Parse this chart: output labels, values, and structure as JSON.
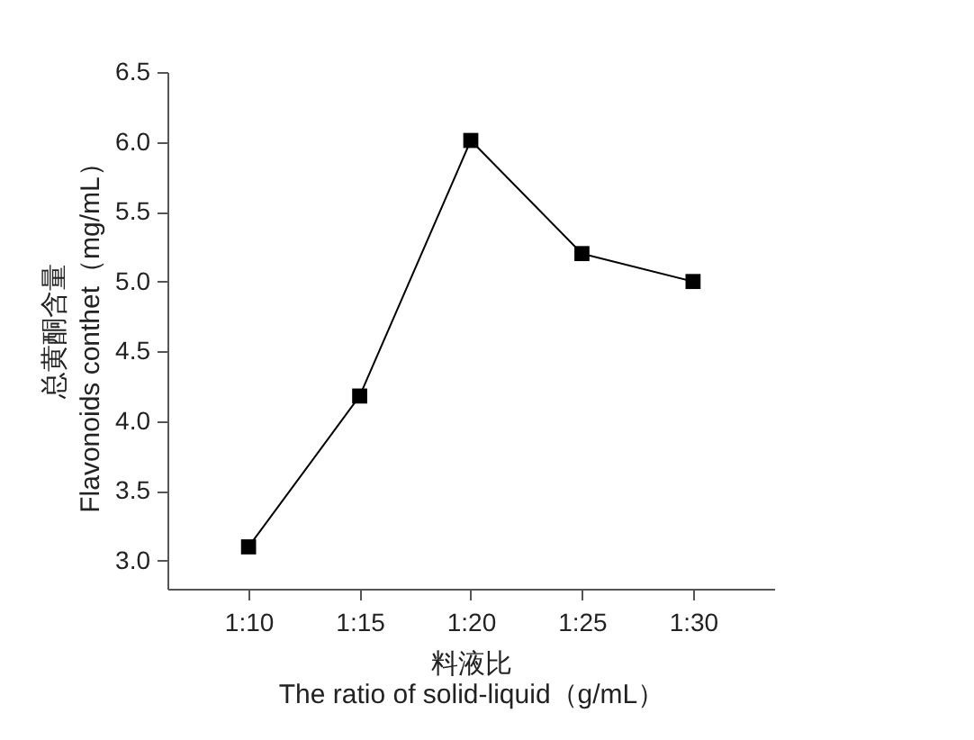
{
  "chart_data": {
    "type": "line",
    "xlabel": "料液比\nThe ratio of solid-liquid（g/mL）",
    "ylabel": "总黄酮含量\nFlavonoids conthet（mg/mL）",
    "categories": [
      "1:10",
      "1:15",
      "1:20",
      "1:25",
      "1:30"
    ],
    "series": [
      {
        "color": "#000000",
        "values": [
          3.1,
          4.18,
          6.01,
          5.2,
          5.0
        ]
      }
    ],
    "ylim": [
      2.8,
      6.5
    ],
    "yticks": [
      {
        "value": 3,
        "label": "3.0"
      },
      3.5,
      {
        "value": 4,
        "label": "4.0"
      },
      4.5,
      {
        "value": 5,
        "label": "5.0"
      },
      5.5,
      {
        "value": 6,
        "label": "6.0"
      },
      6.5
    ],
    "grid": false,
    "marker": "square",
    "line_style": "solid"
  }
}
